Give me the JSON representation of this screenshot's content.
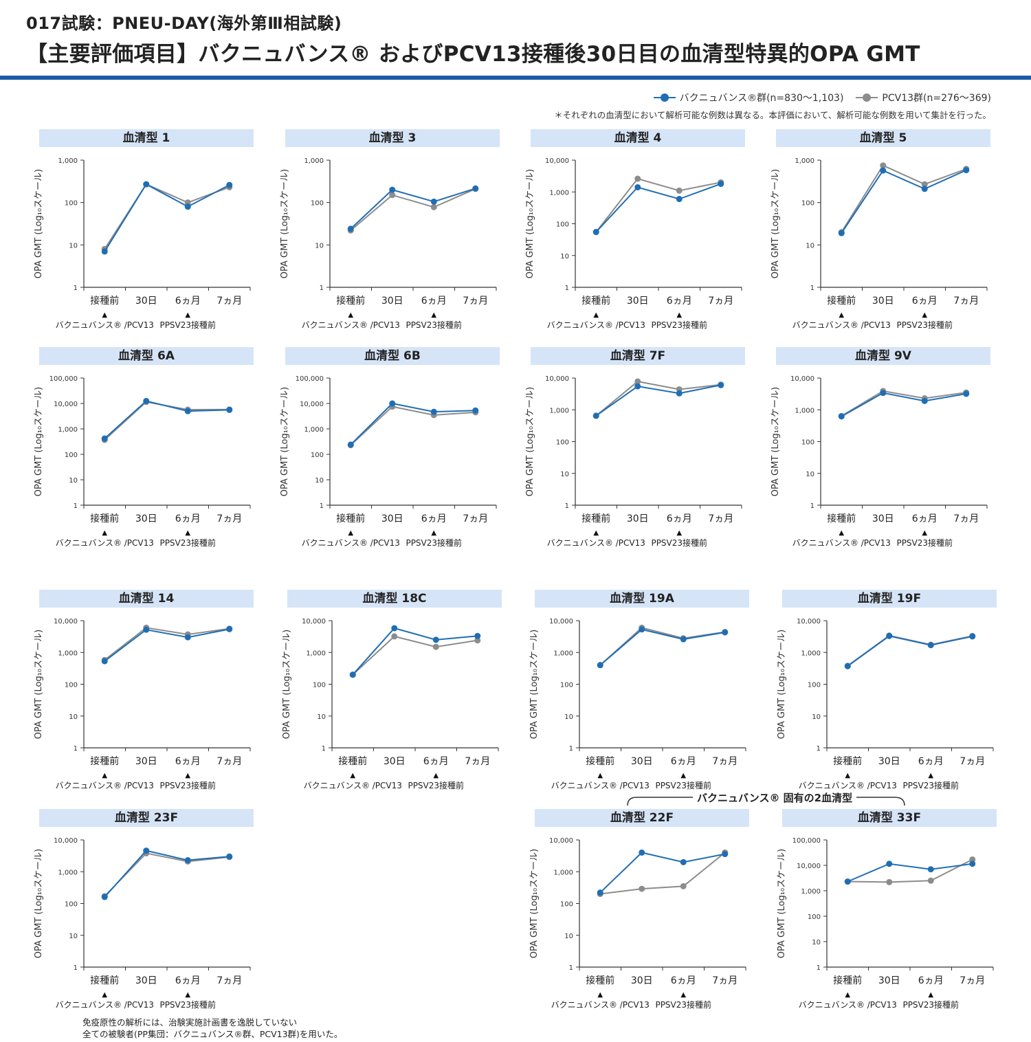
{
  "header": {
    "title_line1": "017試験：PNEU-DAY(海外第Ⅲ相試験)",
    "title_line2": "【主要評価項目】バクニュバンス® およびPCV13接種後30日目の血清型特異的OPA GMT"
  },
  "legend": {
    "series1": "バクニュバンス®群(n=830～1,103)",
    "series2": "PCV13群(n=276～369)"
  },
  "note": "＊それぞれの血清型において解析可能な例数は異なる。本評価において、解析可能な例数を用いて集計を行った。",
  "colors": {
    "vaxneuvance": "#1f6eb5",
    "pcv13": "#8c8c8c",
    "title_bg": "#d6e4f7",
    "rule": "#1a5ba7"
  },
  "axis": {
    "ylabel": "OPA GMT (Log₁₀スケール)",
    "x_categories": [
      "接種前",
      "30日",
      "6ヵ月",
      "7ヵ月"
    ],
    "sub_label_1": "バクニュバンス® /PCV13",
    "sub_label_2": "PPSV23接種前",
    "marker": "▲"
  },
  "bracket_label": "バクニュバンス® 固有の2血清型",
  "footnote": [
    "免疫原性の解析には、治験実施計画書を逸脱していない",
    "全ての被験者(PP集団：バクニュバンス®群、PCV13群)を用いた。"
  ],
  "chart_data": [
    {
      "type": "line",
      "title": "血清型 1",
      "ylim": [
        1,
        1000
      ],
      "yscale": "log",
      "yticks": [
        "1",
        "10",
        "100",
        "1,000"
      ],
      "categories": [
        "接種前",
        "30日",
        "6ヵ月",
        "7ヵ月"
      ],
      "series": [
        {
          "name": "バクニュバンス®群",
          "values": [
            7,
            270,
            80,
            260
          ]
        },
        {
          "name": "PCV13群",
          "values": [
            8,
            270,
            100,
            230
          ]
        }
      ]
    },
    {
      "type": "line",
      "title": "血清型 3",
      "ylim": [
        1,
        1000
      ],
      "yscale": "log",
      "yticks": [
        "1",
        "10",
        "100",
        "1,000"
      ],
      "categories": [
        "接種前",
        "30日",
        "6ヵ月",
        "7ヵ月"
      ],
      "series": [
        {
          "name": "バクニュバンス®群",
          "values": [
            24,
            200,
            105,
            215
          ]
        },
        {
          "name": "PCV13群",
          "values": [
            22,
            150,
            78,
            210
          ]
        }
      ]
    },
    {
      "type": "line",
      "title": "血清型 4",
      "ylim": [
        1,
        10000
      ],
      "yscale": "log",
      "yticks": [
        "1",
        "10",
        "100",
        "1,000",
        "10,000"
      ],
      "categories": [
        "接種前",
        "30日",
        "6ヵ月",
        "7ヵ月"
      ],
      "series": [
        {
          "name": "バクニュバンス®群",
          "values": [
            55,
            1400,
            600,
            1800
          ]
        },
        {
          "name": "PCV13群",
          "values": [
            55,
            2600,
            1100,
            2000
          ]
        }
      ]
    },
    {
      "type": "line",
      "title": "血清型 5",
      "ylim": [
        1,
        1000
      ],
      "yscale": "log",
      "yticks": [
        "1",
        "10",
        "100",
        "1,000"
      ],
      "categories": [
        "接種前",
        "30日",
        "6ヵ月",
        "7ヵ月"
      ],
      "series": [
        {
          "name": "バクニュバンス®群",
          "values": [
            19,
            570,
            210,
            580
          ]
        },
        {
          "name": "PCV13群",
          "values": [
            20,
            750,
            270,
            620
          ]
        }
      ]
    },
    {
      "type": "line",
      "title": "血清型 6A",
      "ylim": [
        1,
        100000
      ],
      "yscale": "log",
      "yticks": [
        "1",
        "10",
        "100",
        "1,000",
        "10,000",
        "100,000"
      ],
      "categories": [
        "接種前",
        "30日",
        "6ヵ月",
        "7ヵ月"
      ],
      "series": [
        {
          "name": "バクニュバンス®群",
          "values": [
            420,
            12500,
            5000,
            5600
          ]
        },
        {
          "name": "PCV13群",
          "values": [
            370,
            11500,
            5700,
            5800
          ]
        }
      ]
    },
    {
      "type": "line",
      "title": "血清型 6B",
      "ylim": [
        1,
        100000
      ],
      "yscale": "log",
      "yticks": [
        "1",
        "10",
        "100",
        "1,000",
        "10,000",
        "100,000"
      ],
      "categories": [
        "接種前",
        "30日",
        "6ヵ月",
        "7ヵ月"
      ],
      "series": [
        {
          "name": "バクニュバンス®群",
          "values": [
            240,
            10000,
            4700,
            5300
          ]
        },
        {
          "name": "PCV13群",
          "values": [
            230,
            7500,
            3500,
            4500
          ]
        }
      ]
    },
    {
      "type": "line",
      "title": "血清型 7F",
      "ylim": [
        1,
        10000
      ],
      "yscale": "log",
      "yticks": [
        "1",
        "10",
        "100",
        "1,000",
        "10,000"
      ],
      "categories": [
        "接種前",
        "30日",
        "6ヵ月",
        "7ヵ月"
      ],
      "series": [
        {
          "name": "バクニュバンス®群",
          "values": [
            650,
            5500,
            3300,
            6000
          ]
        },
        {
          "name": "PCV13群",
          "values": [
            650,
            7800,
            4400,
            6200
          ]
        }
      ]
    },
    {
      "type": "line",
      "title": "血清型 9V",
      "ylim": [
        1,
        10000
      ],
      "yscale": "log",
      "yticks": [
        "1",
        "10",
        "100",
        "1,000",
        "10,000"
      ],
      "categories": [
        "接種前",
        "30日",
        "6ヵ月",
        "7ヵ月"
      ],
      "series": [
        {
          "name": "バクニュバンス®群",
          "values": [
            620,
            3400,
            1900,
            3200
          ]
        },
        {
          "name": "PCV13群",
          "values": [
            640,
            3900,
            2300,
            3500
          ]
        }
      ]
    },
    {
      "type": "line",
      "title": "血清型 14",
      "ylim": [
        1,
        10000
      ],
      "yscale": "log",
      "yticks": [
        "1",
        "10",
        "100",
        "1,000",
        "10,000"
      ],
      "categories": [
        "接種前",
        "30日",
        "6ヵ月",
        "7ヵ月"
      ],
      "series": [
        {
          "name": "バクニュバンス®群",
          "values": [
            530,
            5200,
            3000,
            5400
          ]
        },
        {
          "name": "PCV13群",
          "values": [
            580,
            6000,
            3700,
            5600
          ]
        }
      ]
    },
    {
      "type": "line",
      "title": "血清型 18C",
      "ylim": [
        1,
        10000
      ],
      "yscale": "log",
      "yticks": [
        "1",
        "10",
        "100",
        "1,000",
        "10,000"
      ],
      "categories": [
        "接種前",
        "30日",
        "6ヵ月",
        "7ヵ月"
      ],
      "series": [
        {
          "name": "バクニュバンス®群",
          "values": [
            200,
            5800,
            2500,
            3300
          ]
        },
        {
          "name": "PCV13群",
          "values": [
            200,
            3200,
            1500,
            2400
          ]
        }
      ]
    },
    {
      "type": "line",
      "title": "血清型 19A",
      "ylim": [
        1,
        10000
      ],
      "yscale": "log",
      "yticks": [
        "1",
        "10",
        "100",
        "1,000",
        "10,000"
      ],
      "categories": [
        "接種前",
        "30日",
        "6ヵ月",
        "7ヵ月"
      ],
      "series": [
        {
          "name": "バクニュバンス®群",
          "values": [
            400,
            5300,
            2600,
            4300
          ]
        },
        {
          "name": "PCV13群",
          "values": [
            400,
            6000,
            2800,
            4400
          ]
        }
      ]
    },
    {
      "type": "line",
      "title": "血清型 19F",
      "ylim": [
        1,
        10000
      ],
      "yscale": "log",
      "yticks": [
        "1",
        "10",
        "100",
        "1,000",
        "10,000"
      ],
      "categories": [
        "接種前",
        "30日",
        "6ヵ月",
        "7ヵ月"
      ],
      "series": [
        {
          "name": "バクニュバンス®群",
          "values": [
            370,
            3300,
            1700,
            3200
          ]
        },
        {
          "name": "PCV13群",
          "values": [
            380,
            3400,
            1750,
            3300
          ]
        }
      ]
    },
    {
      "type": "line",
      "title": "血清型 23F",
      "ylim": [
        1,
        10000
      ],
      "yscale": "log",
      "yticks": [
        "1",
        "10",
        "100",
        "1,000",
        "10,000"
      ],
      "categories": [
        "接種前",
        "30日",
        "6ヵ月",
        "7ヵ月"
      ],
      "series": [
        {
          "name": "バクニュバンス®群",
          "values": [
            160,
            4600,
            2300,
            3000
          ]
        },
        {
          "name": "PCV13群",
          "values": [
            170,
            3800,
            2100,
            2900
          ]
        }
      ]
    },
    {
      "type": "line",
      "title": "血清型 22F",
      "ylim": [
        1,
        10000
      ],
      "yscale": "log",
      "yticks": [
        "1",
        "10",
        "100",
        "1,000",
        "10,000"
      ],
      "categories": [
        "接種前",
        "30日",
        "6ヵ月",
        "7ヵ月"
      ],
      "series": [
        {
          "name": "バクニュバンス®群",
          "values": [
            220,
            4000,
            2000,
            3600
          ]
        },
        {
          "name": "PCV13群",
          "values": [
            200,
            290,
            350,
            4000
          ]
        }
      ]
    },
    {
      "type": "line",
      "title": "血清型 33F",
      "ylim": [
        1,
        100000
      ],
      "yscale": "log",
      "yticks": [
        "1",
        "10",
        "100",
        "1,000",
        "10,000",
        "100,000"
      ],
      "categories": [
        "接種前",
        "30日",
        "6ヵ月",
        "7ヵ月"
      ],
      "series": [
        {
          "name": "バクニュバンス®群",
          "values": [
            2300,
            11500,
            7000,
            11500
          ]
        },
        {
          "name": "PCV13群",
          "values": [
            2300,
            2200,
            2500,
            17000
          ]
        }
      ]
    }
  ]
}
